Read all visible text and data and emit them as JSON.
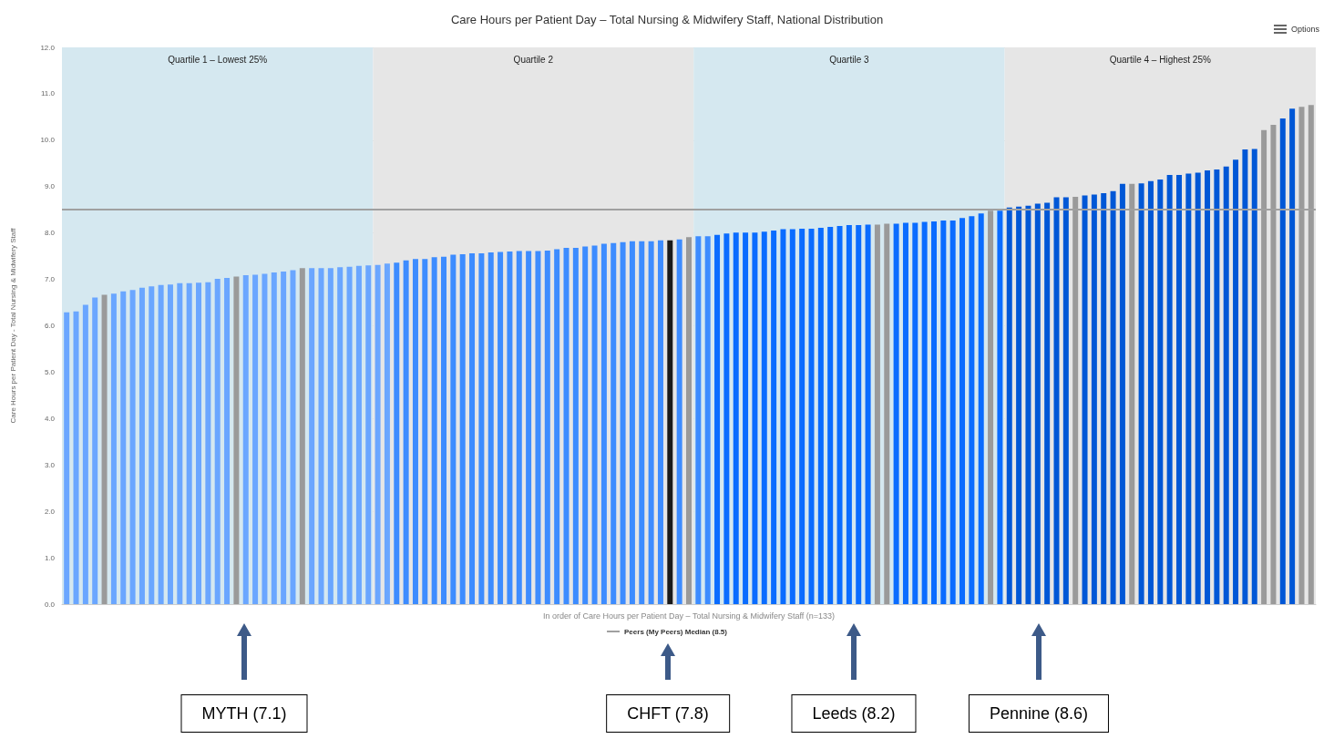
{
  "chart_data": {
    "type": "bar",
    "title": "Care Hours per Patient Day – Total Nursing & Midwifery Staff, National Distribution",
    "xlabel": "In order of Care Hours per Patient Day – Total Nursing & Midwifery Staff (n=133)",
    "ylabel": "Care Hours per Patient Day - Total Nursing & Midwifery Staff",
    "categories": [
      null,
      null,
      null,
      null,
      null,
      null,
      null,
      null,
      null,
      null,
      null,
      null,
      null,
      null,
      null,
      null,
      null,
      null,
      null,
      null,
      null,
      null,
      null,
      null,
      null,
      null,
      null,
      null,
      null,
      null,
      null,
      null,
      null,
      null,
      null,
      null,
      null,
      null,
      null,
      null,
      null,
      null,
      null,
      null,
      null,
      null,
      null,
      null,
      null,
      null,
      null,
      null,
      null,
      null,
      null,
      null,
      null,
      null,
      null,
      null,
      null,
      null,
      null,
      null,
      null,
      null,
      null,
      null,
      null,
      null,
      null,
      null,
      null,
      null,
      null,
      null,
      null,
      null,
      null,
      null,
      null,
      null,
      null,
      null,
      null,
      null,
      null,
      null,
      null,
      null,
      null,
      null,
      null,
      null,
      null,
      null,
      null,
      null,
      null,
      null,
      null,
      null,
      null,
      null,
      null,
      null,
      null,
      null,
      null,
      null,
      null,
      null,
      null,
      null,
      null,
      null,
      null,
      null,
      null,
      null,
      null,
      null,
      null,
      null,
      null,
      null,
      null,
      null,
      null,
      null,
      null,
      null,
      null
    ],
    "values": [
      6.29,
      6.31,
      6.45,
      6.61,
      6.67,
      6.69,
      6.74,
      6.77,
      6.82,
      6.85,
      6.88,
      6.89,
      6.92,
      6.92,
      6.93,
      6.94,
      7.01,
      7.03,
      7.06,
      7.09,
      7.1,
      7.12,
      7.15,
      7.17,
      7.2,
      7.24,
      7.24,
      7.24,
      7.24,
      7.26,
      7.27,
      7.29,
      7.3,
      7.31,
      7.34,
      7.36,
      7.41,
      7.44,
      7.44,
      7.48,
      7.49,
      7.53,
      7.54,
      7.56,
      7.56,
      7.58,
      7.59,
      7.6,
      7.61,
      7.61,
      7.61,
      7.62,
      7.65,
      7.68,
      7.68,
      7.71,
      7.73,
      7.77,
      7.78,
      7.8,
      7.82,
      7.82,
      7.82,
      7.84,
      7.84,
      7.86,
      7.91,
      7.93,
      7.93,
      7.96,
      7.99,
      8.01,
      8.01,
      8.01,
      8.03,
      8.05,
      8.08,
      8.08,
      8.09,
      8.09,
      8.11,
      8.13,
      8.15,
      8.17,
      8.17,
      8.18,
      8.18,
      8.2,
      8.2,
      8.22,
      8.22,
      8.24,
      8.25,
      8.27,
      8.27,
      8.32,
      8.36,
      8.42,
      8.48,
      8.48,
      8.55,
      8.57,
      8.59,
      8.63,
      8.65,
      8.77,
      8.77,
      8.78,
      8.81,
      8.83,
      8.86,
      8.9,
      9.06,
      9.06,
      9.07,
      9.12,
      9.15,
      9.25,
      9.25,
      9.28,
      9.3,
      9.35,
      9.37,
      9.43,
      9.58,
      9.8,
      9.81,
      10.22,
      10.33,
      10.47,
      10.68,
      10.72,
      10.76
    ],
    "colors": [
      "#6aa6ff",
      "#6aa6ff",
      "#6aa6ff",
      "#6aa6ff",
      "#9a9a9a",
      "#6aa6ff",
      "#6aa6ff",
      "#6aa6ff",
      "#6aa6ff",
      "#6aa6ff",
      "#6aa6ff",
      "#6aa6ff",
      "#6aa6ff",
      "#6aa6ff",
      "#6aa6ff",
      "#6aa6ff",
      "#6aa6ff",
      "#6aa6ff",
      "#9a9a9a",
      "#6aa6ff",
      "#6aa6ff",
      "#6aa6ff",
      "#6aa6ff",
      "#6aa6ff",
      "#6aa6ff",
      "#9a9a9a",
      "#6aa6ff",
      "#6aa6ff",
      "#6aa6ff",
      "#6aa6ff",
      "#6aa6ff",
      "#6aa6ff",
      "#6aa6ff",
      "#6aa6ff",
      "#6aa6ff",
      "#3d8cff",
      "#3d8cff",
      "#3d8cff",
      "#3d8cff",
      "#3d8cff",
      "#3d8cff",
      "#3d8cff",
      "#3d8cff",
      "#3d8cff",
      "#3d8cff",
      "#3d8cff",
      "#3d8cff",
      "#3d8cff",
      "#3d8cff",
      "#3d8cff",
      "#3d8cff",
      "#3d8cff",
      "#3d8cff",
      "#3d8cff",
      "#3d8cff",
      "#3d8cff",
      "#3d8cff",
      "#3d8cff",
      "#3d8cff",
      "#3d8cff",
      "#3d8cff",
      "#3d8cff",
      "#3d8cff",
      "#3d8cff",
      "#1a1a1a",
      "#3d8cff",
      "#9a9a9a",
      "#3d8cff",
      "#3d8cff",
      "#0a6cff",
      "#0a6cff",
      "#0a6cff",
      "#0a6cff",
      "#0a6cff",
      "#0a6cff",
      "#0a6cff",
      "#0a6cff",
      "#0a6cff",
      "#0a6cff",
      "#0a6cff",
      "#0a6cff",
      "#0a6cff",
      "#0a6cff",
      "#0a6cff",
      "#0a6cff",
      "#0a6cff",
      "#9a9a9a",
      "#9a9a9a",
      "#0a6cff",
      "#0a6cff",
      "#0a6cff",
      "#0a6cff",
      "#0a6cff",
      "#0a6cff",
      "#0a6cff",
      "#0a6cff",
      "#0a6cff",
      "#0a6cff",
      "#9a9a9a",
      "#0a6cff",
      "#0057d6",
      "#0057d6",
      "#0057d6",
      "#0057d6",
      "#0057d6",
      "#0057d6",
      "#0057d6",
      "#9a9a9a",
      "#0057d6",
      "#0057d6",
      "#0057d6",
      "#0057d6",
      "#0057d6",
      "#9a9a9a",
      "#0057d6",
      "#0057d6",
      "#0057d6",
      "#0057d6",
      "#0057d6",
      "#0057d6",
      "#0057d6",
      "#0057d6",
      "#0057d6",
      "#0057d6",
      "#0057d6",
      "#0057d6",
      "#0057d6",
      "#9a9a9a",
      "#9a9a9a",
      "#0057d6",
      "#0057d6",
      "#9a9a9a",
      "#9a9a9a"
    ],
    "ylim": [
      0,
      12
    ],
    "yticks": [
      {
        "value": 0,
        "label": "0.0"
      },
      {
        "value": 1,
        "label": "1.0"
      },
      {
        "value": 2,
        "label": "2.0"
      },
      {
        "value": 3,
        "label": "3.0"
      },
      {
        "value": 4,
        "label": "4.0"
      },
      {
        "value": 5,
        "label": "5.0"
      },
      {
        "value": 6,
        "label": "6.0"
      },
      {
        "value": 7,
        "label": "7.0"
      },
      {
        "value": 8,
        "label": "8.0"
      },
      {
        "value": 9,
        "label": "9.0"
      },
      {
        "value": 10,
        "label": "10.0"
      },
      {
        "value": 11,
        "label": "11.0"
      },
      {
        "value": 12,
        "label": "12.0"
      }
    ],
    "ref_lines": [
      {
        "axis": "y",
        "value": 8.5,
        "label": "Peers (My Peers) Median (8.5)",
        "color": "#a0a0a0"
      }
    ],
    "annotations": [
      "Quartile 1 – Lowest 25%",
      "Quartile 2",
      "Quartile 3",
      "Quartile 4 – Highest 25%",
      "Options",
      {
        "text": "MYTH (7.1)"
      },
      {
        "text": "CHFT (7.8)"
      },
      {
        "text": "Leeds (8.2)"
      },
      {
        "text": "Pennine (8.6)"
      }
    ],
    "grid": "y",
    "legend": "bottom",
    "tick_labels": "y"
  }
}
